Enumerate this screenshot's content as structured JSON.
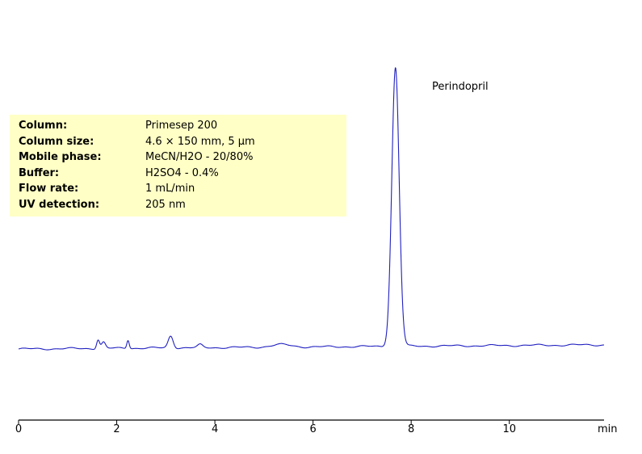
{
  "info": [
    {
      "label": "Column:",
      "value": "Primesep 200"
    },
    {
      "label": "Column size:",
      "value": "4.6 × 150 mm, 5 µm"
    },
    {
      "label": "Mobile phase:",
      "value": "MeCN/H2O - 20/80%"
    },
    {
      "label": "Buffer:",
      "value": "H2SO4 - 0.4%"
    },
    {
      "label": "Flow rate:",
      "value": "1 mL/min"
    },
    {
      "label": "UV detection:",
      "value": "205 nm"
    }
  ],
  "chart_data": {
    "type": "line",
    "title": "",
    "xlabel": "min",
    "ylabel": "",
    "xlim": [
      0,
      11.93
    ],
    "ylim": [
      -25,
      100
    ],
    "xticks": [
      0,
      2,
      4,
      6,
      8,
      10
    ],
    "grid": false,
    "line_color": "#2020c0",
    "peaks": [
      {
        "name": "",
        "rt": 1.62,
        "height": 3.2,
        "width": 0.03
      },
      {
        "name": "",
        "rt": 1.73,
        "height": 2.2,
        "width": 0.04
      },
      {
        "name": "",
        "rt": 2.23,
        "height": 3.0,
        "width": 0.025
      },
      {
        "name": "",
        "rt": 3.1,
        "height": 4.3,
        "width": 0.05
      },
      {
        "name": "",
        "rt": 3.7,
        "height": 1.0,
        "width": 0.05
      },
      {
        "name": "",
        "rt": 5.35,
        "height": 0.9,
        "width": 0.2
      },
      {
        "name": "Perindopril",
        "rt": 7.68,
        "height": 100,
        "width": 0.075
      }
    ],
    "baseline_drift": [
      {
        "x": 0,
        "y": 0
      },
      {
        "x": 11.93,
        "y": 1.5
      }
    ]
  }
}
